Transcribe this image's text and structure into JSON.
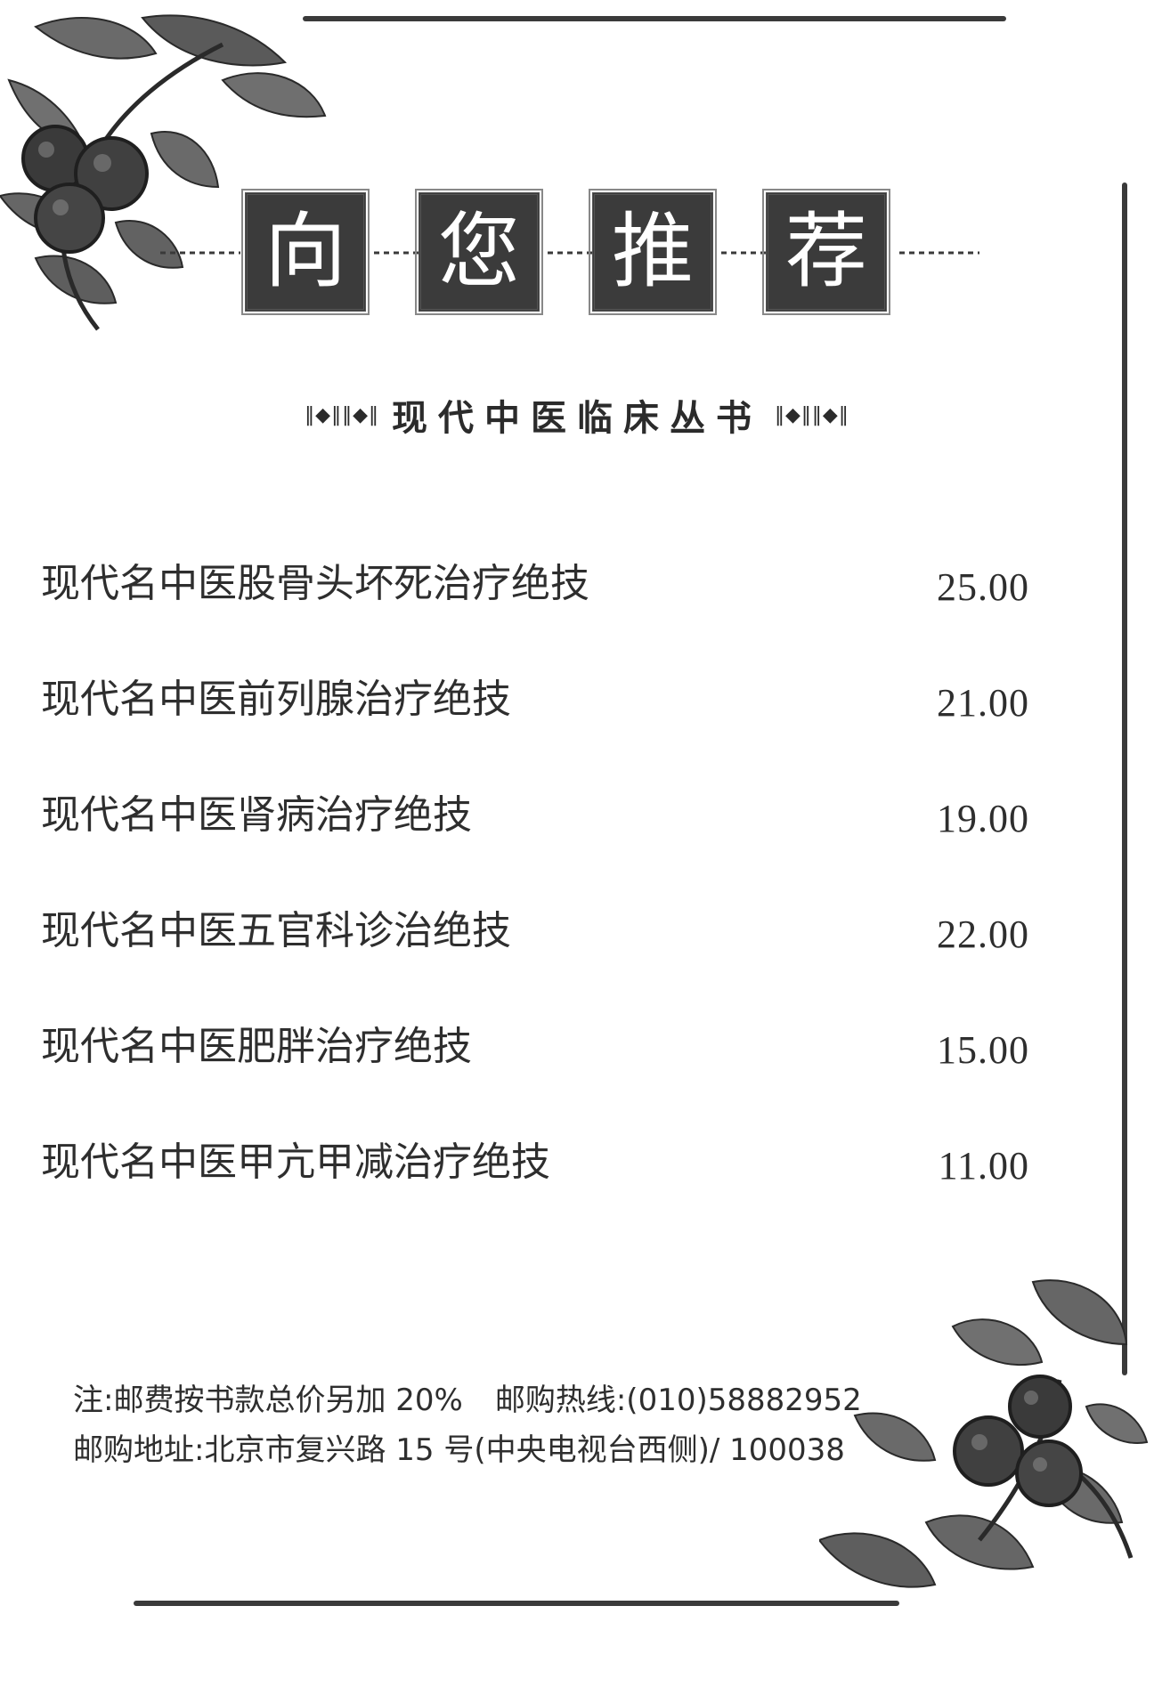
{
  "heading": {
    "chars": [
      "向",
      "您",
      "推",
      "荐"
    ]
  },
  "series": {
    "title": "现代中医临床丛书",
    "ornament_left": "‖◆‖‖◆‖",
    "ornament_right": "‖◆‖‖◆‖"
  },
  "books": [
    {
      "title": "现代名中医股骨头坏死治疗绝技",
      "price": "25.00"
    },
    {
      "title": "现代名中医前列腺治疗绝技",
      "price": "21.00"
    },
    {
      "title": "现代名中医肾病治疗绝技",
      "price": "19.00"
    },
    {
      "title": "现代名中医五官科诊治绝技",
      "price": "22.00"
    },
    {
      "title": "现代名中医肥胖治疗绝技",
      "price": "15.00"
    },
    {
      "title": "现代名中医甲亢甲减治疗绝技",
      "price": "11.00"
    }
  ],
  "notes": {
    "postage": "注:邮费按书款总价另加 20%",
    "hotline": "邮购热线:(010)58882952",
    "address": "邮购地址:北京市复兴路 15 号(中央电视台西侧)/ 100038"
  },
  "colors": {
    "ink": "#3b3b3b",
    "paper": "#ffffff"
  }
}
